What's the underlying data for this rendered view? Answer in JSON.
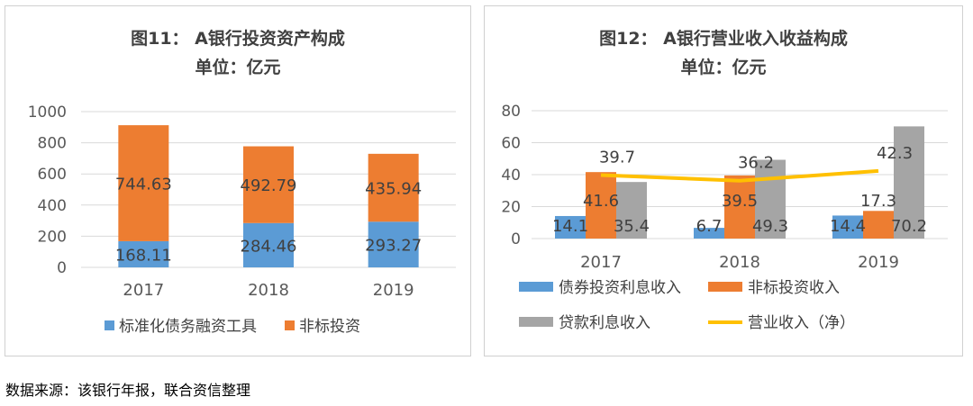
{
  "chart_data": [
    {
      "type": "bar",
      "stacked": true,
      "title": "图11： A银行投资资产构成",
      "subtitle": "单位：亿元",
      "categories": [
        "2017",
        "2018",
        "2019"
      ],
      "series": [
        {
          "name": "标准化债务融资工具",
          "values": [
            168.11,
            284.46,
            293.27
          ],
          "labels": [
            "168.11",
            "284.46",
            "293.27"
          ],
          "color": "#5B9BD5"
        },
        {
          "name": "非标投资",
          "values": [
            744.63,
            492.79,
            435.94
          ],
          "labels": [
            "744.63",
            "492.79",
            "435.94"
          ],
          "color": "#ED7D31"
        }
      ],
      "ylim": [
        0,
        1000
      ],
      "yticks": [
        "0",
        "200",
        "400",
        "600",
        "800",
        "1000"
      ],
      "grid": true,
      "legend": "bottom"
    },
    {
      "type": "bar",
      "title": "图12： A银行营业收入收益构成",
      "subtitle": "单位：亿元",
      "categories": [
        "2017",
        "2018",
        "2019"
      ],
      "series": [
        {
          "name": "债券投资利息收入",
          "kind": "bar",
          "values": [
            14.1,
            6.7,
            14.4
          ],
          "labels": [
            "14.1",
            "6.7",
            "14.4"
          ],
          "color": "#5B9BD5"
        },
        {
          "name": "非标投资收入",
          "kind": "bar",
          "values": [
            41.6,
            39.5,
            17.3
          ],
          "labels": [
            "41.6",
            "39.5",
            "17.3"
          ],
          "color": "#ED7D31"
        },
        {
          "name": "贷款利息收入",
          "kind": "bar",
          "values": [
            35.4,
            49.3,
            70.2
          ],
          "labels": [
            "35.4",
            "49.3",
            "70.2"
          ],
          "color": "#A5A5A5"
        },
        {
          "name": "营业收入（净）",
          "kind": "line",
          "values": [
            39.7,
            36.2,
            42.3
          ],
          "labels": [
            "39.7",
            "36.2",
            "42.3"
          ],
          "color": "#FFC000"
        }
      ],
      "ylim": [
        0,
        80
      ],
      "yticks": [
        "0",
        "20",
        "40",
        "60",
        "80"
      ],
      "grid": true,
      "legend": "bottom"
    }
  ],
  "source_note": "数据来源：该银行年报，联合资信整理"
}
